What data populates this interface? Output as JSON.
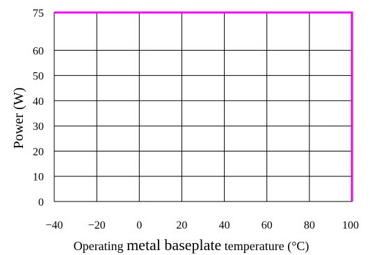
{
  "chart_data": {
    "type": "line",
    "title": "",
    "xlabel_parts": [
      "Operating ",
      "metal baseplate",
      " temperature (°C)"
    ],
    "ylabel": "Power (W)",
    "x_ticks": [
      "−40",
      "−20",
      "0",
      "20",
      "40",
      "60",
      "80",
      "100"
    ],
    "x_tick_values": [
      -40,
      -20,
      0,
      20,
      40,
      60,
      80,
      100
    ],
    "y_ticks": [
      "0",
      "10",
      "20",
      "30",
      "40",
      "50",
      "60",
      "75"
    ],
    "y_tick_values": [
      0,
      10,
      20,
      30,
      40,
      50,
      60,
      75
    ],
    "xlim": [
      -40,
      100
    ],
    "ylim": [
      0,
      75
    ],
    "grid": true,
    "series": [
      {
        "color": "#ee00ee",
        "points": [
          [
            -40,
            75
          ],
          [
            100,
            75
          ],
          [
            100,
            0
          ]
        ]
      }
    ]
  }
}
